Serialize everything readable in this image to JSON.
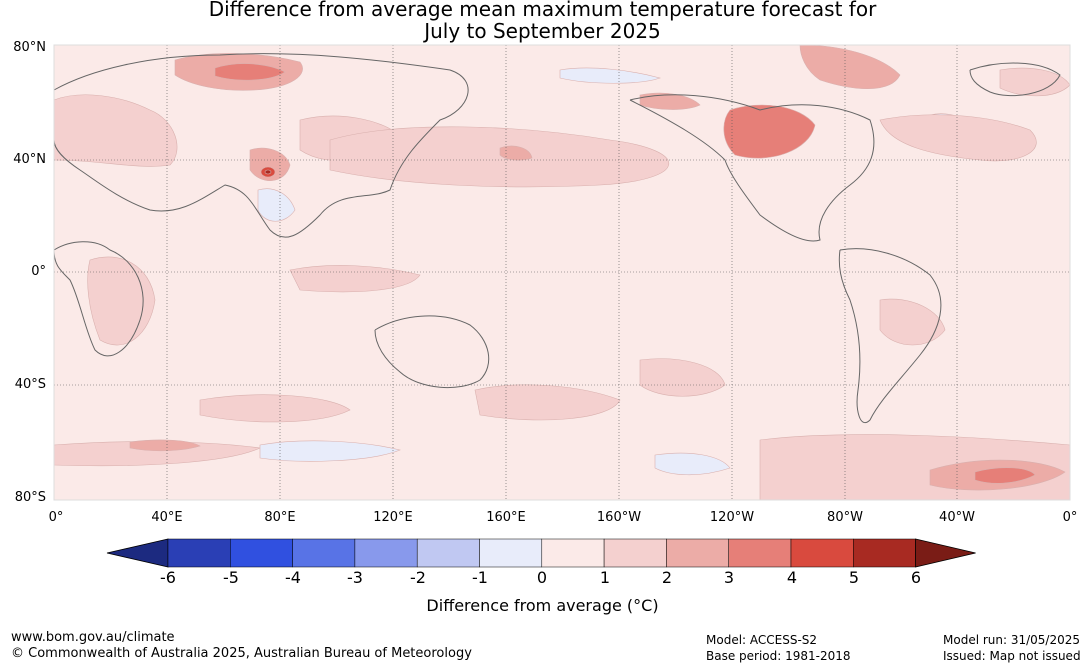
{
  "title": {
    "line1": "Difference from average mean maximum temperature forecast for",
    "line2": "July to September 2025"
  },
  "map": {
    "projection": "equirectangular",
    "center_longitude": "180",
    "lat_labels": [
      "80°N",
      "40°N",
      "0°",
      "40°S",
      "80°S"
    ],
    "lon_labels": [
      "0°",
      "40°E",
      "80°E",
      "120°E",
      "160°E",
      "160°W",
      "120°W",
      "80°W",
      "40°W",
      "0°"
    ],
    "background_anomaly_class": "0 to 1",
    "regions": [
      {
        "name": "Scandinavia / western Russia",
        "class": "2 to 4"
      },
      {
        "name": "Europe",
        "class": "1 to 3"
      },
      {
        "name": "Pakistan / northern India",
        "class": "3 to 5"
      },
      {
        "name": "India interior",
        "class": "-1 to 0"
      },
      {
        "name": "western North America",
        "class": "2 to 3"
      },
      {
        "name": "Canadian Arctic",
        "class": "1 to 3"
      },
      {
        "name": "Arctic north of Siberia",
        "class": "-1 to 0"
      },
      {
        "name": "Hudson Bay region",
        "class": "-1 to 0"
      },
      {
        "name": "Southern Ocean south of Africa",
        "class": "2 to 4"
      },
      {
        "name": "Southern Ocean south of Pacific",
        "class": "-1 to 0"
      }
    ]
  },
  "colorbar": {
    "ticks": [
      "-6",
      "-5",
      "-4",
      "-3",
      "-2",
      "-1",
      "0",
      "1",
      "2",
      "3",
      "4",
      "5",
      "6"
    ],
    "colors": [
      "#1c2a80",
      "#2a3fb5",
      "#3050e0",
      "#5873e6",
      "#8899ec",
      "#c0c8f2",
      "#e8ecfa",
      "#fbeae8",
      "#f4d0cf",
      "#ecaca7",
      "#e67f78",
      "#d94a3e",
      "#a82a22",
      "#7a1c16"
    ],
    "label": "Difference from average ($^\\circ$C)",
    "label_display": "Difference from average (°C)"
  },
  "footer": {
    "url": "www.bom.gov.au/climate",
    "copyright": "© Commonwealth of Australia 2025, Australian Bureau of Meteorology",
    "model": "Model: ACCESS-S2",
    "base_period": "Base period: 1981-2018",
    "model_run": "Model run: 31/05/2025",
    "issued": "Issued: Map not issued"
  }
}
